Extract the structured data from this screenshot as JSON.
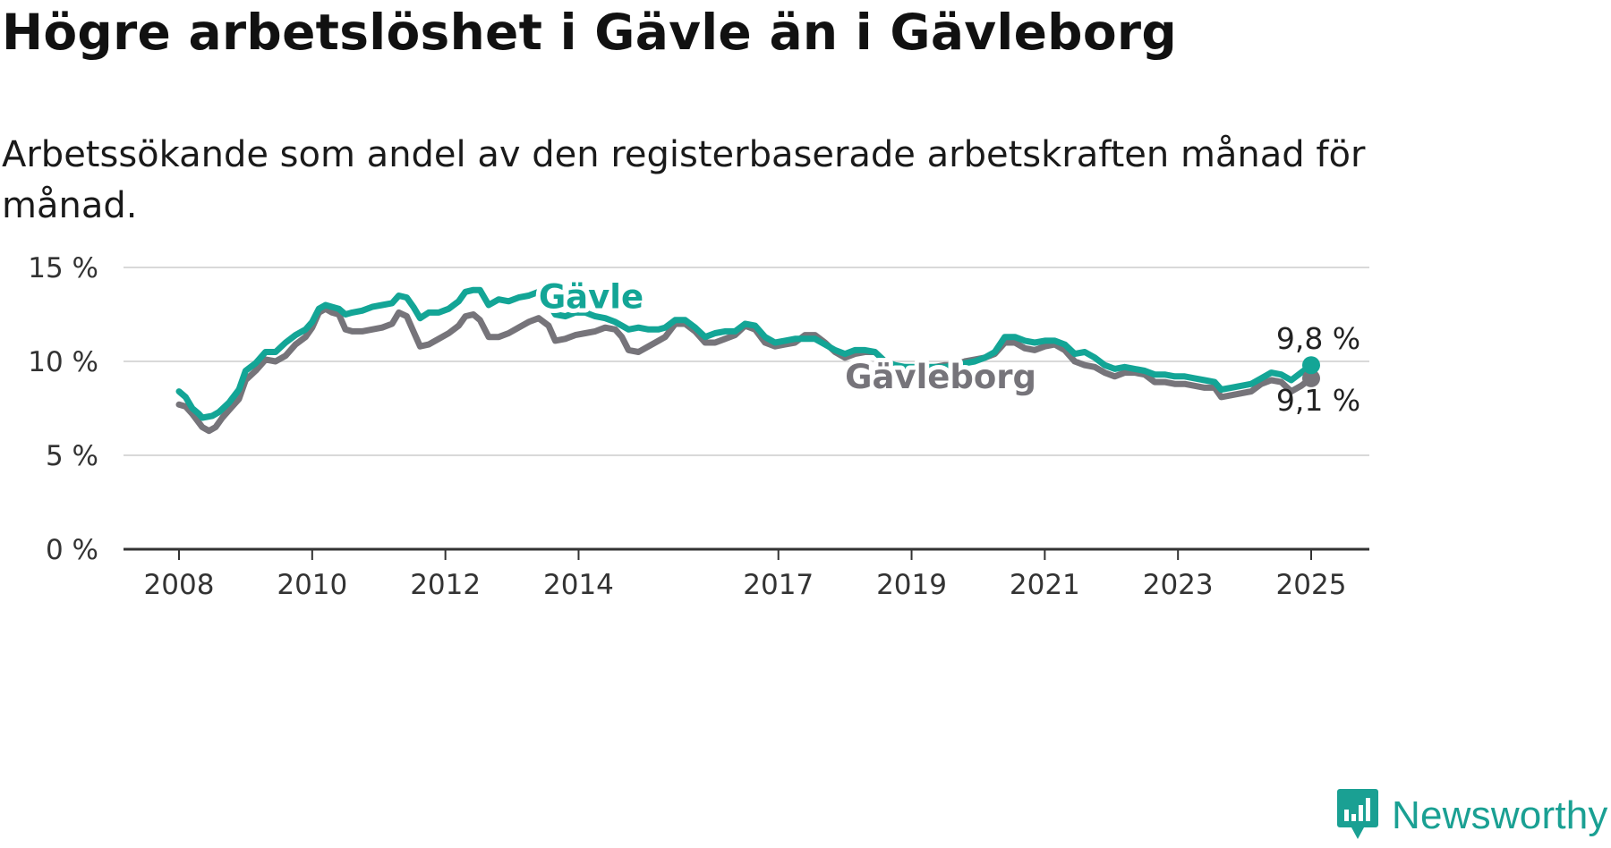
{
  "header": {
    "title": "Högre arbetslöshet i Gävle än i Gävleborg",
    "subtitle": "Arbetssökande som andel av den registerbaserade arbetskraften månad för månad."
  },
  "brand": {
    "name": "Newsworthy",
    "icon": "newsworthy-logo-icon",
    "color": "#1aa093"
  },
  "colors": {
    "gavle": "#13a596",
    "gavleborg": "#76747a",
    "grid": "#d9d9d9",
    "axis": "#333333"
  },
  "chart_data": {
    "type": "line",
    "title": "Högre arbetslöshet i Gävle än i Gävleborg",
    "subtitle": "Arbetssökande som andel av den registerbaserade arbetskraften månad för månad.",
    "xlabel": "",
    "ylabel": "",
    "xlim": [
      2008,
      2025
    ],
    "ylim": [
      0,
      15
    ],
    "grid": true,
    "x_ticks": [
      {
        "value": 2008,
        "label": "2008"
      },
      {
        "value": 2010,
        "label": "2010"
      },
      {
        "value": 2012,
        "label": "2012"
      },
      {
        "value": 2014,
        "label": "2014"
      },
      {
        "value": 2017,
        "label": "2017"
      },
      {
        "value": 2019,
        "label": "2019"
      },
      {
        "value": 2021,
        "label": "2021"
      },
      {
        "value": 2023,
        "label": "2023"
      },
      {
        "value": 2025,
        "label": "2025"
      }
    ],
    "y_ticks": [
      {
        "value": 0,
        "label": "0 %"
      },
      {
        "value": 5,
        "label": "5 %"
      },
      {
        "value": 10,
        "label": "10 %"
      },
      {
        "value": 15,
        "label": "15 %"
      }
    ],
    "series": [
      {
        "name": "Gävleborg",
        "label": "Gävleborg",
        "color": "#76747a",
        "end_label": "9,1 %",
        "points": [
          [
            2008.0,
            7.7
          ],
          [
            2008.1,
            7.6
          ],
          [
            2008.2,
            7.2
          ],
          [
            2008.35,
            6.5
          ],
          [
            2008.45,
            6.3
          ],
          [
            2008.55,
            6.5
          ],
          [
            2008.65,
            7.0
          ],
          [
            2008.75,
            7.4
          ],
          [
            2008.9,
            8.0
          ],
          [
            2009.0,
            9.0
          ],
          [
            2009.15,
            9.5
          ],
          [
            2009.3,
            10.1
          ],
          [
            2009.45,
            10.0
          ],
          [
            2009.6,
            10.3
          ],
          [
            2009.75,
            10.9
          ],
          [
            2009.9,
            11.3
          ],
          [
            2010.0,
            11.8
          ],
          [
            2010.1,
            12.6
          ],
          [
            2010.2,
            12.8
          ],
          [
            2010.3,
            12.6
          ],
          [
            2010.4,
            12.5
          ],
          [
            2010.5,
            11.7
          ],
          [
            2010.6,
            11.6
          ],
          [
            2010.75,
            11.6
          ],
          [
            2010.9,
            11.7
          ],
          [
            2011.05,
            11.8
          ],
          [
            2011.2,
            12.0
          ],
          [
            2011.3,
            12.6
          ],
          [
            2011.42,
            12.4
          ],
          [
            2011.52,
            11.6
          ],
          [
            2011.62,
            10.8
          ],
          [
            2011.75,
            10.9
          ],
          [
            2011.9,
            11.2
          ],
          [
            2012.05,
            11.5
          ],
          [
            2012.2,
            11.9
          ],
          [
            2012.3,
            12.4
          ],
          [
            2012.42,
            12.5
          ],
          [
            2012.52,
            12.2
          ],
          [
            2012.65,
            11.3
          ],
          [
            2012.8,
            11.3
          ],
          [
            2012.95,
            11.5
          ],
          [
            2013.1,
            11.8
          ],
          [
            2013.25,
            12.1
          ],
          [
            2013.4,
            12.3
          ],
          [
            2013.55,
            11.9
          ],
          [
            2013.65,
            11.1
          ],
          [
            2013.8,
            11.2
          ],
          [
            2013.95,
            11.4
          ],
          [
            2014.1,
            11.5
          ],
          [
            2014.25,
            11.6
          ],
          [
            2014.4,
            11.8
          ],
          [
            2014.55,
            11.7
          ],
          [
            2014.65,
            11.3
          ],
          [
            2014.75,
            10.6
          ],
          [
            2014.9,
            10.5
          ],
          [
            2015.05,
            10.8
          ],
          [
            2015.2,
            11.1
          ],
          [
            2015.3,
            11.3
          ],
          [
            2015.45,
            12.0
          ],
          [
            2015.6,
            12.0
          ],
          [
            2015.75,
            11.6
          ],
          [
            2015.9,
            11.0
          ],
          [
            2016.05,
            11.0
          ],
          [
            2016.2,
            11.2
          ],
          [
            2016.35,
            11.4
          ],
          [
            2016.5,
            11.9
          ],
          [
            2016.65,
            11.7
          ],
          [
            2016.8,
            11.0
          ],
          [
            2016.95,
            10.8
          ],
          [
            2017.1,
            10.9
          ],
          [
            2017.25,
            11.0
          ],
          [
            2017.4,
            11.4
          ],
          [
            2017.55,
            11.4
          ],
          [
            2017.7,
            11.0
          ],
          [
            2017.85,
            10.5
          ],
          [
            2018.0,
            10.2
          ],
          [
            2018.15,
            10.4
          ],
          [
            2018.3,
            10.5
          ],
          [
            2018.45,
            10.5
          ],
          [
            2018.6,
            10.0
          ],
          [
            2018.75,
            9.7
          ],
          [
            2018.9,
            9.6
          ],
          [
            2019.05,
            9.6
          ],
          [
            2019.2,
            9.6
          ],
          [
            2019.35,
            9.7
          ],
          [
            2019.5,
            9.8
          ],
          [
            2019.65,
            9.8
          ],
          [
            2019.8,
            10.0
          ],
          [
            2019.95,
            10.1
          ],
          [
            2020.1,
            10.2
          ],
          [
            2020.25,
            10.4
          ],
          [
            2020.4,
            11.0
          ],
          [
            2020.55,
            11.0
          ],
          [
            2020.7,
            10.7
          ],
          [
            2020.85,
            10.6
          ],
          [
            2021.0,
            10.8
          ],
          [
            2021.15,
            10.9
          ],
          [
            2021.3,
            10.6
          ],
          [
            2021.45,
            10.0
          ],
          [
            2021.6,
            9.8
          ],
          [
            2021.75,
            9.7
          ],
          [
            2021.9,
            9.4
          ],
          [
            2022.05,
            9.2
          ],
          [
            2022.2,
            9.4
          ],
          [
            2022.35,
            9.4
          ],
          [
            2022.5,
            9.3
          ],
          [
            2022.65,
            8.9
          ],
          [
            2022.8,
            8.9
          ],
          [
            2022.95,
            8.8
          ],
          [
            2023.1,
            8.8
          ],
          [
            2023.25,
            8.7
          ],
          [
            2023.4,
            8.6
          ],
          [
            2023.55,
            8.6
          ],
          [
            2023.65,
            8.1
          ],
          [
            2023.8,
            8.2
          ],
          [
            2023.95,
            8.3
          ],
          [
            2024.1,
            8.4
          ],
          [
            2024.25,
            8.8
          ],
          [
            2024.4,
            9.0
          ],
          [
            2024.55,
            8.9
          ],
          [
            2024.7,
            8.4
          ],
          [
            2024.85,
            8.7
          ],
          [
            2025.0,
            9.1
          ]
        ]
      },
      {
        "name": "Gävle",
        "label": "Gävle",
        "color": "#13a596",
        "end_label": "9,8 %",
        "points": [
          [
            2008.0,
            8.4
          ],
          [
            2008.1,
            8.1
          ],
          [
            2008.2,
            7.5
          ],
          [
            2008.3,
            7.2
          ],
          [
            2008.35,
            7.0
          ],
          [
            2008.5,
            7.1
          ],
          [
            2008.6,
            7.3
          ],
          [
            2008.75,
            7.8
          ],
          [
            2008.9,
            8.5
          ],
          [
            2009.0,
            9.5
          ],
          [
            2009.15,
            9.9
          ],
          [
            2009.3,
            10.5
          ],
          [
            2009.45,
            10.5
          ],
          [
            2009.6,
            11.0
          ],
          [
            2009.75,
            11.4
          ],
          [
            2009.9,
            11.7
          ],
          [
            2010.0,
            12.1
          ],
          [
            2010.1,
            12.8
          ],
          [
            2010.2,
            13.0
          ],
          [
            2010.3,
            12.9
          ],
          [
            2010.4,
            12.8
          ],
          [
            2010.5,
            12.5
          ],
          [
            2010.6,
            12.6
          ],
          [
            2010.75,
            12.7
          ],
          [
            2010.9,
            12.9
          ],
          [
            2011.05,
            13.0
          ],
          [
            2011.2,
            13.1
          ],
          [
            2011.3,
            13.5
          ],
          [
            2011.42,
            13.4
          ],
          [
            2011.52,
            12.9
          ],
          [
            2011.62,
            12.3
          ],
          [
            2011.75,
            12.6
          ],
          [
            2011.9,
            12.6
          ],
          [
            2012.05,
            12.8
          ],
          [
            2012.2,
            13.2
          ],
          [
            2012.3,
            13.7
          ],
          [
            2012.42,
            13.8
          ],
          [
            2012.52,
            13.8
          ],
          [
            2012.65,
            13.0
          ],
          [
            2012.8,
            13.3
          ],
          [
            2012.95,
            13.2
          ],
          [
            2013.1,
            13.4
          ],
          [
            2013.25,
            13.5
          ],
          [
            2013.4,
            13.7
          ],
          [
            2013.55,
            13.1
          ],
          [
            2013.65,
            12.5
          ],
          [
            2013.8,
            12.4
          ],
          [
            2013.95,
            12.6
          ],
          [
            2014.1,
            12.6
          ],
          [
            2014.25,
            12.4
          ],
          [
            2014.4,
            12.3
          ],
          [
            2014.55,
            12.1
          ],
          [
            2014.65,
            11.9
          ],
          [
            2014.75,
            11.7
          ],
          [
            2014.9,
            11.8
          ],
          [
            2015.05,
            11.7
          ],
          [
            2015.2,
            11.7
          ],
          [
            2015.3,
            11.8
          ],
          [
            2015.45,
            12.2
          ],
          [
            2015.6,
            12.2
          ],
          [
            2015.75,
            11.8
          ],
          [
            2015.9,
            11.3
          ],
          [
            2016.05,
            11.5
          ],
          [
            2016.2,
            11.6
          ],
          [
            2016.35,
            11.6
          ],
          [
            2016.5,
            12.0
          ],
          [
            2016.65,
            11.9
          ],
          [
            2016.8,
            11.3
          ],
          [
            2016.95,
            11.0
          ],
          [
            2017.1,
            11.1
          ],
          [
            2017.25,
            11.2
          ],
          [
            2017.4,
            11.2
          ],
          [
            2017.55,
            11.2
          ],
          [
            2017.7,
            10.9
          ],
          [
            2017.85,
            10.6
          ],
          [
            2018.0,
            10.4
          ],
          [
            2018.15,
            10.6
          ],
          [
            2018.3,
            10.6
          ],
          [
            2018.45,
            10.5
          ],
          [
            2018.6,
            10.0
          ],
          [
            2018.75,
            9.8
          ],
          [
            2018.9,
            9.7
          ],
          [
            2019.05,
            9.7
          ],
          [
            2019.2,
            9.7
          ],
          [
            2019.35,
            9.7
          ],
          [
            2019.5,
            9.7
          ],
          [
            2019.65,
            9.8
          ],
          [
            2019.8,
            9.9
          ],
          [
            2019.95,
            10.0
          ],
          [
            2020.1,
            10.2
          ],
          [
            2020.25,
            10.5
          ],
          [
            2020.4,
            11.3
          ],
          [
            2020.55,
            11.3
          ],
          [
            2020.7,
            11.1
          ],
          [
            2020.85,
            11.0
          ],
          [
            2021.0,
            11.1
          ],
          [
            2021.15,
            11.1
          ],
          [
            2021.3,
            10.9
          ],
          [
            2021.45,
            10.4
          ],
          [
            2021.6,
            10.5
          ],
          [
            2021.75,
            10.2
          ],
          [
            2021.9,
            9.8
          ],
          [
            2022.05,
            9.6
          ],
          [
            2022.2,
            9.7
          ],
          [
            2022.35,
            9.6
          ],
          [
            2022.5,
            9.5
          ],
          [
            2022.65,
            9.3
          ],
          [
            2022.8,
            9.3
          ],
          [
            2022.95,
            9.2
          ],
          [
            2023.1,
            9.2
          ],
          [
            2023.25,
            9.1
          ],
          [
            2023.4,
            9.0
          ],
          [
            2023.55,
            8.9
          ],
          [
            2023.65,
            8.5
          ],
          [
            2023.8,
            8.6
          ],
          [
            2023.95,
            8.7
          ],
          [
            2024.1,
            8.8
          ],
          [
            2024.25,
            9.1
          ],
          [
            2024.4,
            9.4
          ],
          [
            2024.55,
            9.3
          ],
          [
            2024.7,
            9.0
          ],
          [
            2024.85,
            9.4
          ],
          [
            2025.0,
            9.8
          ]
        ]
      }
    ]
  }
}
